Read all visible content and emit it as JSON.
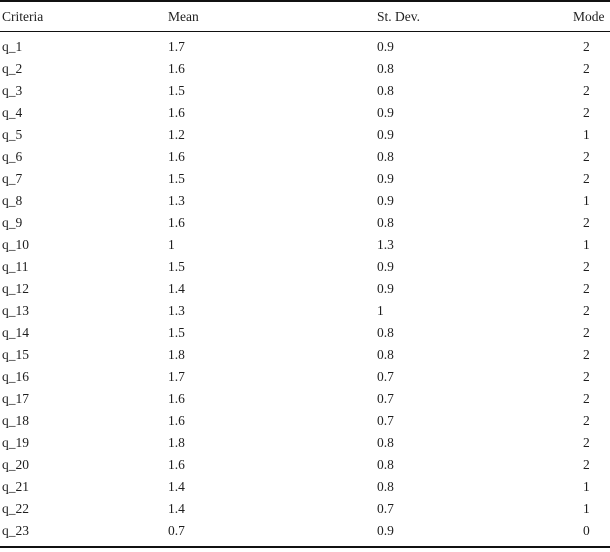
{
  "colors": {
    "background": "#ffffff",
    "text": "#1e1e1e",
    "rule": "#111111"
  },
  "table": {
    "columns": [
      {
        "label": "Criteria"
      },
      {
        "label": "Mean"
      },
      {
        "label": "St. Dev."
      },
      {
        "label": "Mode"
      }
    ],
    "rows": [
      [
        "q_1",
        "1.7",
        "0.9",
        "2"
      ],
      [
        "q_2",
        "1.6",
        "0.8",
        "2"
      ],
      [
        "q_3",
        "1.5",
        "0.8",
        "2"
      ],
      [
        "q_4",
        "1.6",
        "0.9",
        "2"
      ],
      [
        "q_5",
        "1.2",
        "0.9",
        "1"
      ],
      [
        "q_6",
        "1.6",
        "0.8",
        "2"
      ],
      [
        "q_7",
        "1.5",
        "0.9",
        "2"
      ],
      [
        "q_8",
        "1.3",
        "0.9",
        "1"
      ],
      [
        "q_9",
        "1.6",
        "0.8",
        "2"
      ],
      [
        "q_10",
        "1",
        "1.3",
        "1"
      ],
      [
        "q_11",
        "1.5",
        "0.9",
        "2"
      ],
      [
        "q_12",
        "1.4",
        "0.9",
        "2"
      ],
      [
        "q_13",
        "1.3",
        "1",
        "2"
      ],
      [
        "q_14",
        "1.5",
        "0.8",
        "2"
      ],
      [
        "q_15",
        "1.8",
        "0.8",
        "2"
      ],
      [
        "q_16",
        "1.7",
        "0.7",
        "2"
      ],
      [
        "q_17",
        "1.6",
        "0.7",
        "2"
      ],
      [
        "q_18",
        "1.6",
        "0.7",
        "2"
      ],
      [
        "q_19",
        "1.8",
        "0.8",
        "2"
      ],
      [
        "q_20",
        "1.6",
        "0.8",
        "2"
      ],
      [
        "q_21",
        "1.4",
        "0.8",
        "1"
      ],
      [
        "q_22",
        "1.4",
        "0.7",
        "1"
      ],
      [
        "q_23",
        "0.7",
        "0.9",
        "0"
      ]
    ]
  }
}
